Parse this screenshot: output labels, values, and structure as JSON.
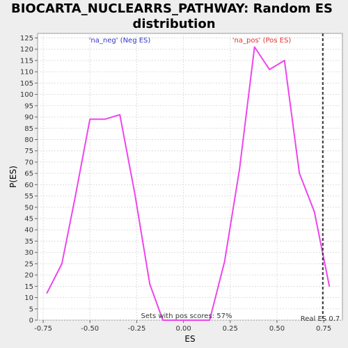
{
  "chart_data": {
    "type": "line",
    "title_lines": [
      "BIOCARTA_NUCLEARRS_PATHWAY: Random ES",
      "distribution"
    ],
    "xlabel": "ES",
    "ylabel": "P(ES)",
    "xlim": [
      -0.78,
      0.85
    ],
    "ylim": [
      0,
      127
    ],
    "x_ticks": [
      -0.75,
      -0.5,
      -0.25,
      0,
      0.25,
      0.5,
      0.75
    ],
    "x_tick_labels": [
      "-0.75",
      "-0.50",
      "-0.25",
      "0.00",
      "0.25",
      "0.50",
      "0.75"
    ],
    "y_ticks": [
      0,
      5,
      10,
      15,
      20,
      25,
      30,
      35,
      40,
      45,
      50,
      55,
      60,
      65,
      70,
      75,
      80,
      85,
      90,
      95,
      100,
      105,
      110,
      115,
      120,
      125
    ],
    "grid": true,
    "series": [
      {
        "color": "#ee44ee",
        "x": [
          -0.73,
          -0.65,
          -0.58,
          -0.5,
          -0.42,
          -0.34,
          -0.26,
          -0.18,
          -0.11,
          -0.03,
          0.06,
          0.14,
          0.22,
          0.3,
          0.38,
          0.46,
          0.54,
          0.62,
          0.7,
          0.78
        ],
        "y": [
          12,
          25,
          54,
          89,
          89,
          91,
          56,
          16,
          0,
          0,
          0,
          0,
          26,
          67,
          121,
          111,
          115,
          65,
          48,
          15
        ]
      }
    ],
    "annotations": {
      "neg_label": "'na_neg' (Neg ES)",
      "pos_label": "'na_pos' (Pos ES)",
      "pos_score_text": "Sets with pos scores: 57%",
      "real_es_text": "Real ES 0.7"
    },
    "real_es_value": 0.745,
    "colors": {
      "neg": "#3333cc",
      "pos": "#dd3333",
      "line": "#ee44ee",
      "grid": "#dddddd",
      "background": "#ffffff"
    }
  }
}
